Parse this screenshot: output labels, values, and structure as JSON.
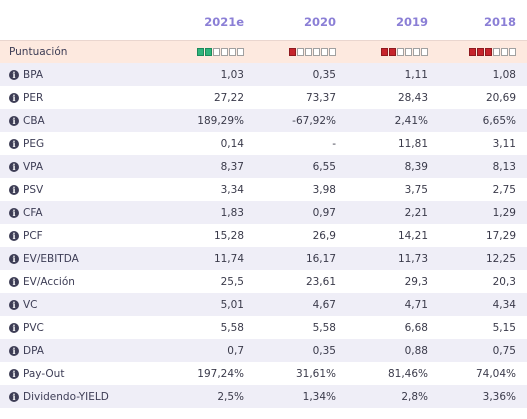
{
  "headers": [
    "",
    "2021e",
    "2020",
    "2019",
    "2018"
  ],
  "score": {
    "label": "Puntuación",
    "ratings": [
      {
        "filled": 2,
        "total": 6,
        "color": "#2fb47c"
      },
      {
        "filled": 1,
        "total": 6,
        "color": "#c7242c"
      },
      {
        "filled": 2,
        "total": 6,
        "color": "#c7242c"
      },
      {
        "filled": 3,
        "total": 6,
        "color": "#c7242c"
      }
    ]
  },
  "rows": [
    {
      "label": "BPA",
      "values": [
        "1,03",
        "0,35",
        "1,11",
        "1,08"
      ]
    },
    {
      "label": "PER",
      "values": [
        "27,22",
        "73,37",
        "28,43",
        "20,69"
      ]
    },
    {
      "label": "CBA",
      "values": [
        "189,29%",
        "-67,92%",
        "2,41%",
        "6,65%"
      ]
    },
    {
      "label": "PEG",
      "values": [
        "0,14",
        "-",
        "11,81",
        "3,11"
      ]
    },
    {
      "label": "VPA",
      "values": [
        "8,37",
        "6,55",
        "8,39",
        "8,13"
      ]
    },
    {
      "label": "PSV",
      "values": [
        "3,34",
        "3,98",
        "3,75",
        "2,75"
      ]
    },
    {
      "label": "CFA",
      "values": [
        "1,83",
        "0,97",
        "2,21",
        "1,29"
      ]
    },
    {
      "label": "PCF",
      "values": [
        "15,28",
        "26,9",
        "14,21",
        "17,29"
      ]
    },
    {
      "label": "EV/EBITDA",
      "values": [
        "11,74",
        "16,17",
        "11,73",
        "12,25"
      ]
    },
    {
      "label": "EV/Acción",
      "values": [
        "25,5",
        "23,61",
        "29,3",
        "20,3"
      ]
    },
    {
      "label": "VC",
      "values": [
        "5,01",
        "4,67",
        "4,71",
        "4,34"
      ]
    },
    {
      "label": "PVC",
      "values": [
        "5,58",
        "5,58",
        "6,68",
        "5,15"
      ]
    },
    {
      "label": "DPA",
      "values": [
        "0,7",
        "0,35",
        "0,88",
        "0,75"
      ]
    },
    {
      "label": "Pay-Out",
      "values": [
        "197,24%",
        "31,61%",
        "81,46%",
        "74,04%"
      ]
    },
    {
      "label": "Dividendo-YIELD",
      "values": [
        "2,5%",
        "1,34%",
        "2,8%",
        "3,36%"
      ]
    }
  ],
  "icons": {
    "row_info": "info-icon"
  }
}
